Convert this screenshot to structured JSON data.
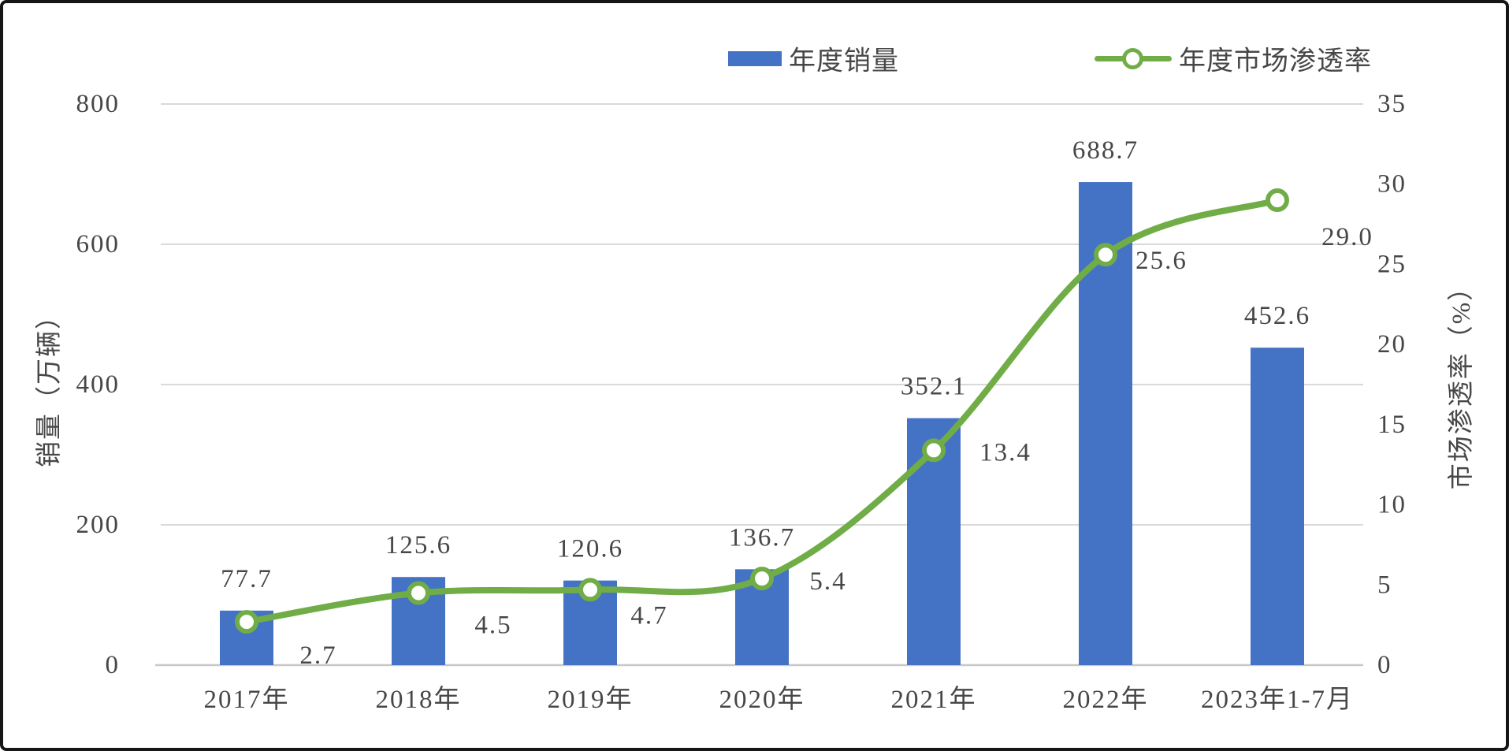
{
  "chart_data": {
    "type": "combo-bar-line",
    "categories": [
      "2017年",
      "2018年",
      "2019年",
      "2020年",
      "2021年",
      "2022年",
      "2023年1-7月"
    ],
    "series": [
      {
        "name": "年度销量",
        "type": "bar",
        "axis": "left",
        "color": "#4472C4",
        "values": [
          77.7,
          125.6,
          120.6,
          136.7,
          352.1,
          688.7,
          452.6
        ],
        "labels": [
          "77.7",
          "125.6",
          "120.6",
          "136.7",
          "352.1",
          "688.7",
          "452.6"
        ]
      },
      {
        "name": "年度市场渗透率",
        "type": "line",
        "axis": "right",
        "color": "#70AD47",
        "marker": "circle-white-fill",
        "smooth": true,
        "values": [
          2.7,
          4.5,
          4.7,
          5.4,
          13.4,
          25.6,
          29.0
        ],
        "labels": [
          "2.7",
          "4.5",
          "4.7",
          "5.4",
          "13.4",
          "25.6",
          "29.0"
        ]
      }
    ],
    "left_axis": {
      "title": "销量（万辆）",
      "min": 0,
      "max": 800,
      "step": 200,
      "ticks": [
        "0",
        "200",
        "400",
        "600",
        "800"
      ]
    },
    "right_axis": {
      "title": "市场渗透率（%）",
      "min": 0,
      "max": 35,
      "step": 5,
      "ticks": [
        "0",
        "5",
        "10",
        "15",
        "20",
        "25",
        "30",
        "35"
      ]
    },
    "legend_position": "top",
    "grid": "horizontal",
    "gridline_color": "#D9D9D9",
    "axis_line_color": "#C8C8C8",
    "text_color": "#474747",
    "background": "#FFFFFF"
  }
}
